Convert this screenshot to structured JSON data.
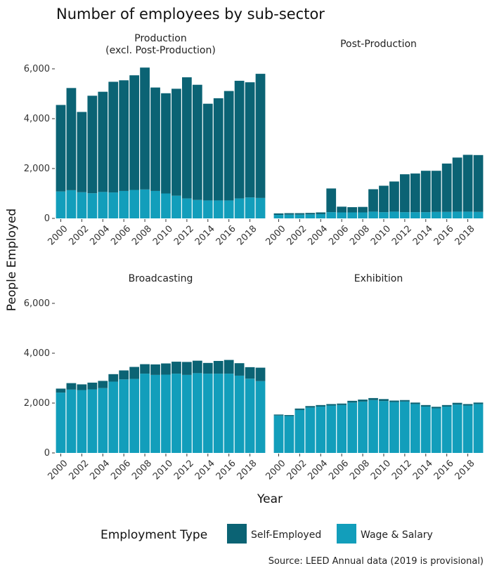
{
  "chart_data": {
    "type": "bar",
    "stacked": true,
    "title": "Number of employees by sub-sector",
    "xlabel": "Year",
    "ylabel": "People Employed",
    "ylim": [
      0,
      6200
    ],
    "yticks": [
      0,
      2000,
      4000,
      6000
    ],
    "ytick_labels": [
      "0",
      "2,000",
      "4,000",
      "6,000"
    ],
    "years": [
      2000,
      2001,
      2002,
      2003,
      2004,
      2005,
      2006,
      2007,
      2008,
      2009,
      2010,
      2011,
      2012,
      2013,
      2014,
      2015,
      2016,
      2017,
      2018,
      2019
    ],
    "xtick_labels": [
      "2000",
      "2002",
      "2004",
      "2006",
      "2008",
      "2010",
      "2012",
      "2014",
      "2016",
      "2018"
    ],
    "legend": {
      "title": "Employment Type",
      "placement": "bottom",
      "items": [
        {
          "name": "Self-Employed",
          "color": "#0b6374"
        },
        {
          "name": "Wage & Salary",
          "color": "#129ebb"
        }
      ]
    },
    "caption": "Source: LEED Annual data (2019 is provisional)",
    "facets": [
      {
        "name": "Production (excl. Post-Production)",
        "label_lines": [
          "Production",
          "(excl. Post-Production)"
        ],
        "wage": [
          1080,
          1130,
          1050,
          1010,
          1060,
          1040,
          1100,
          1140,
          1160,
          1100,
          1000,
          910,
          800,
          740,
          720,
          720,
          720,
          800,
          840,
          820
        ],
        "self": [
          3470,
          4100,
          3220,
          3910,
          4020,
          4440,
          4440,
          4600,
          4890,
          4150,
          4020,
          4290,
          4860,
          4620,
          3880,
          4100,
          4390,
          4720,
          4620,
          4980
        ]
      },
      {
        "name": "Post-Production",
        "label_lines": [
          "Post-Production"
        ],
        "wage": [
          140,
          150,
          150,
          160,
          170,
          250,
          240,
          240,
          240,
          270,
          250,
          270,
          250,
          250,
          250,
          260,
          260,
          270,
          270,
          260
        ],
        "self": [
          60,
          60,
          60,
          60,
          70,
          950,
          230,
          210,
          220,
          900,
          1060,
          1210,
          1520,
          1550,
          1660,
          1650,
          1940,
          2170,
          2280,
          2280
        ]
      },
      {
        "name": "Broadcasting",
        "label_lines": [
          "Broadcasting"
        ],
        "wage": [
          2420,
          2540,
          2520,
          2550,
          2600,
          2860,
          2950,
          2970,
          3180,
          3130,
          3140,
          3180,
          3130,
          3200,
          3180,
          3180,
          3180,
          3100,
          2980,
          2880
        ],
        "self": [
          160,
          260,
          230,
          270,
          290,
          300,
          360,
          480,
          380,
          420,
          450,
          480,
          520,
          500,
          430,
          510,
          550,
          500,
          460,
          540
        ]
      },
      {
        "name": "Exhibition",
        "label_lines": [
          "Exhibition"
        ],
        "wage": [
          1500,
          1480,
          1720,
          1820,
          1860,
          1900,
          1920,
          2020,
          2060,
          2120,
          2080,
          2040,
          2060,
          1960,
          1860,
          1790,
          1860,
          1940,
          1900,
          1960
        ],
        "self": [
          40,
          40,
          60,
          60,
          60,
          60,
          60,
          70,
          80,
          80,
          80,
          60,
          60,
          60,
          60,
          60,
          60,
          70,
          60,
          60
        ]
      }
    ]
  }
}
